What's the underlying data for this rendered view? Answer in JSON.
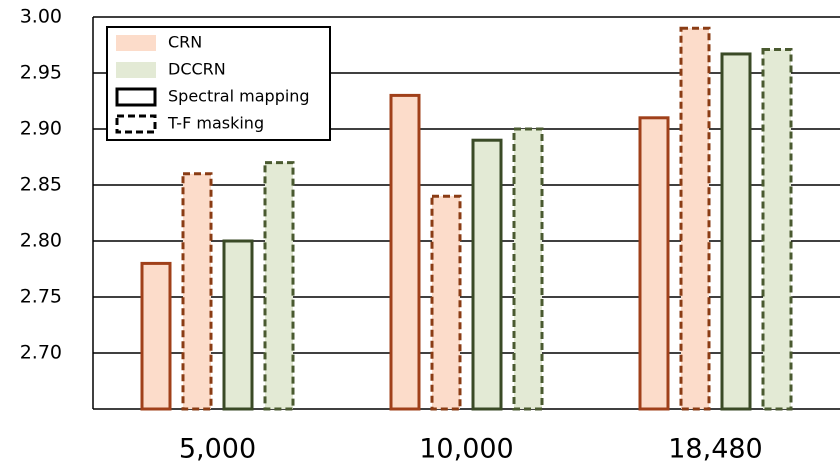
{
  "chart_data": {
    "type": "bar",
    "categories": [
      "5,000",
      "10,000",
      "18,480"
    ],
    "series": [
      {
        "fill": "#fcdcca",
        "stroke": "#a0401a",
        "dashed": false,
        "values": [
          2.78,
          2.93,
          2.91
        ]
      },
      {
        "fill": "#fcdcca",
        "stroke": "#8a3c14",
        "dashed": true,
        "values": [
          2.86,
          2.84,
          2.99
        ]
      },
      {
        "fill": "#e3ead5",
        "stroke": "#3a4a26",
        "dashed": false,
        "values": [
          2.8,
          2.89,
          2.967
        ]
      },
      {
        "fill": "#e3ead5",
        "stroke": "#4a5a30",
        "dashed": true,
        "values": [
          2.87,
          2.9,
          2.971
        ]
      }
    ],
    "legend": {
      "fills": [
        {
          "name": "CRN",
          "color": "#fcdcca"
        },
        {
          "name": "DCCRN",
          "color": "#e3ead5"
        }
      ],
      "borders": [
        {
          "name": "Spectral mapping",
          "dashed": false
        },
        {
          "name": "T-F masking",
          "dashed": true
        }
      ]
    },
    "ylim": [
      2.65,
      3.0
    ],
    "yticks": [
      {
        "value": 2.7,
        "label": "2.70"
      },
      {
        "value": 2.75,
        "label": "2.75"
      },
      {
        "value": 2.8,
        "label": "2.80"
      },
      {
        "value": 2.85,
        "label": "2.85"
      },
      {
        "value": 2.9,
        "label": "2.90"
      },
      {
        "value": 2.95,
        "label": "2.95"
      },
      {
        "value": 3.0,
        "label": "3.00"
      }
    ],
    "grid": true
  }
}
